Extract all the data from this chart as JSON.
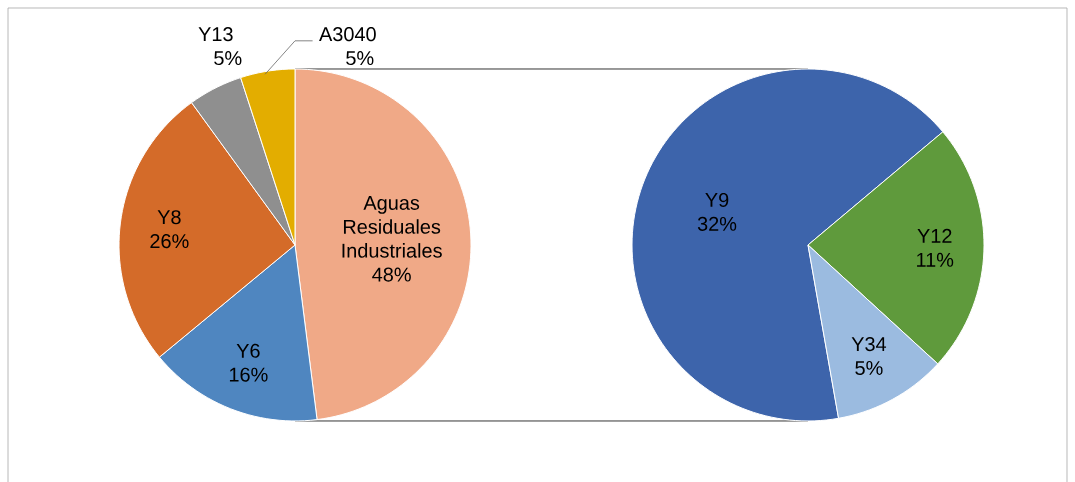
{
  "chart_data": [
    {
      "type": "pie",
      "categories": [
        "Aguas Residuales Industriales",
        "Y6",
        "Y8",
        "Y13",
        "A3040"
      ],
      "values": [
        48,
        16,
        26,
        5,
        5
      ],
      "colors": [
        "#f0a987",
        "#4f86c0",
        "#d46b29",
        "#8f8f8f",
        "#e3ad00"
      ],
      "value_labels": [
        "48%",
        "16%",
        "26%",
        "5%",
        "5%"
      ]
    },
    {
      "type": "pie",
      "categories": [
        "Y9",
        "Y12",
        "Y34"
      ],
      "values": [
        32,
        11,
        5
      ],
      "colors": [
        "#3d64ab",
        "#5f9a3c",
        "#9bbbe0"
      ],
      "value_labels": [
        "32%",
        "11%",
        "5%"
      ]
    }
  ]
}
